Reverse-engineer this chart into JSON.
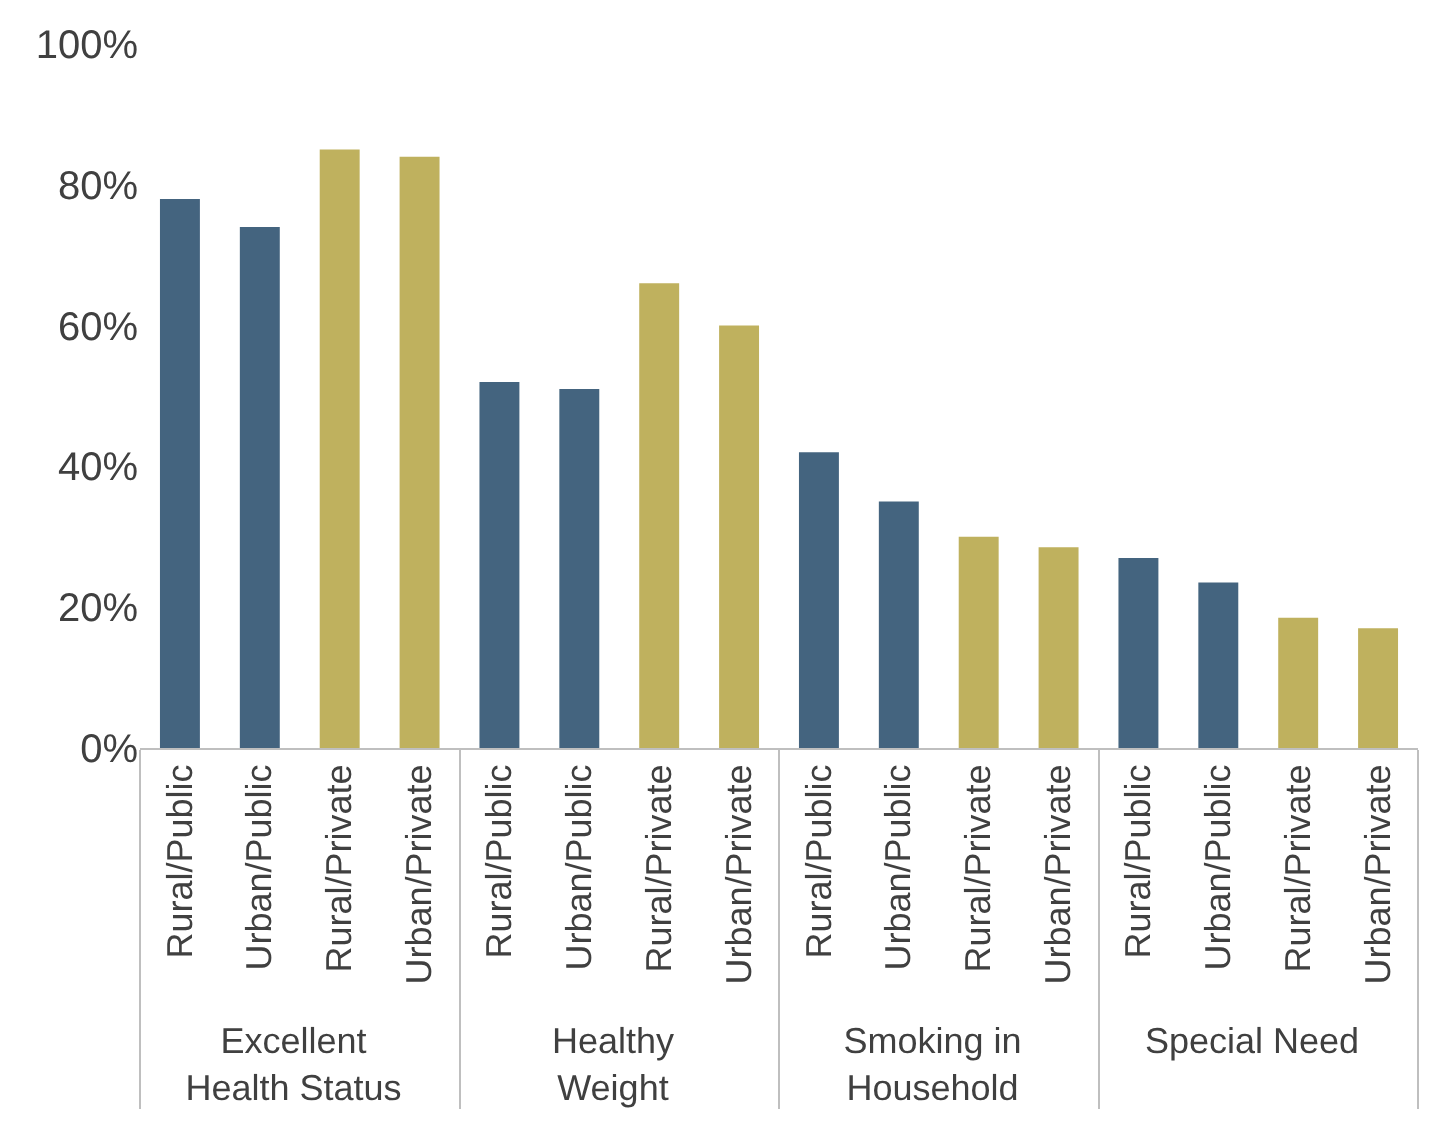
{
  "chart_data": {
    "type": "bar",
    "categories": [
      "Rural/Public",
      "Urban/Public",
      "Rural/Private",
      "Urban/Private",
      "Rural/Public",
      "Urban/Public",
      "Rural/Private",
      "Urban/Private",
      "Rural/Public",
      "Urban/Public",
      "Rural/Private",
      "Urban/Private",
      "Rural/Public",
      "Urban/Public",
      "Rural/Private",
      "Urban/Private"
    ],
    "values": [
      78,
      74,
      85,
      84,
      52,
      51,
      66,
      60,
      42,
      35,
      30,
      28.5,
      27,
      23.5,
      18.5,
      17
    ],
    "colors": [
      "#44647f",
      "#44647f",
      "#bfb15e",
      "#bfb15e",
      "#44647f",
      "#44647f",
      "#bfb15e",
      "#bfb15e",
      "#44647f",
      "#44647f",
      "#bfb15e",
      "#bfb15e",
      "#44647f",
      "#44647f",
      "#bfb15e",
      "#bfb15e"
    ],
    "annotations": [
      "Excellent Health Status",
      "Healthy Weight",
      "Smoking in Household",
      "Special Need"
    ],
    "ylim": [
      0,
      100
    ],
    "yticks": [
      {
        "value": 0,
        "label": "0%"
      },
      {
        "value": 20,
        "label": "20%"
      },
      {
        "value": 40,
        "label": "40%"
      },
      {
        "value": 60,
        "label": "60%"
      },
      {
        "value": 80,
        "label": "80%"
      },
      {
        "value": 100,
        "label": "100%"
      }
    ],
    "legend": false
  }
}
